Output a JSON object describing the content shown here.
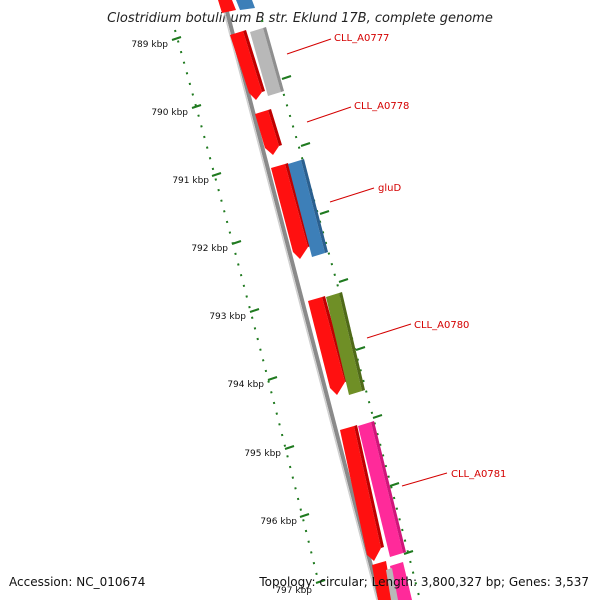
{
  "map": {
    "title": "Clostridium botulinum B str. Eklund 17B, complete genome",
    "accession": "Accession: NC_010674",
    "topology": "Topology: circular; Length: 3,800,327 bp; Genes: 3,537",
    "ticks": [
      {
        "label": "789 kbp"
      },
      {
        "label": "790 kbp"
      },
      {
        "label": "791 kbp"
      },
      {
        "label": "792 kbp"
      },
      {
        "label": "793 kbp"
      },
      {
        "label": "794 kbp"
      },
      {
        "label": "795 kbp"
      },
      {
        "label": "796 kbp"
      },
      {
        "label": "797 kbp"
      }
    ],
    "gene_labels": [
      {
        "name": "CLL_A0777",
        "color": "#d40000"
      },
      {
        "name": "CLL_A0778",
        "color": "#d40000"
      },
      {
        "name": "gluD",
        "color": "#d40000"
      },
      {
        "name": "CLL_A0780",
        "color": "#d40000"
      },
      {
        "name": "CLL_A0781",
        "color": "#d40000"
      }
    ],
    "colors": {
      "backbone": "#8a8a8a",
      "cds": "#ff1010",
      "trna_blue": "#3d7fb8",
      "grey_feature": "#b8b8b8",
      "green_feature": "#6f8f26",
      "pink_feature": "#ff2a9a",
      "tick": "#1f7a1f"
    }
  }
}
